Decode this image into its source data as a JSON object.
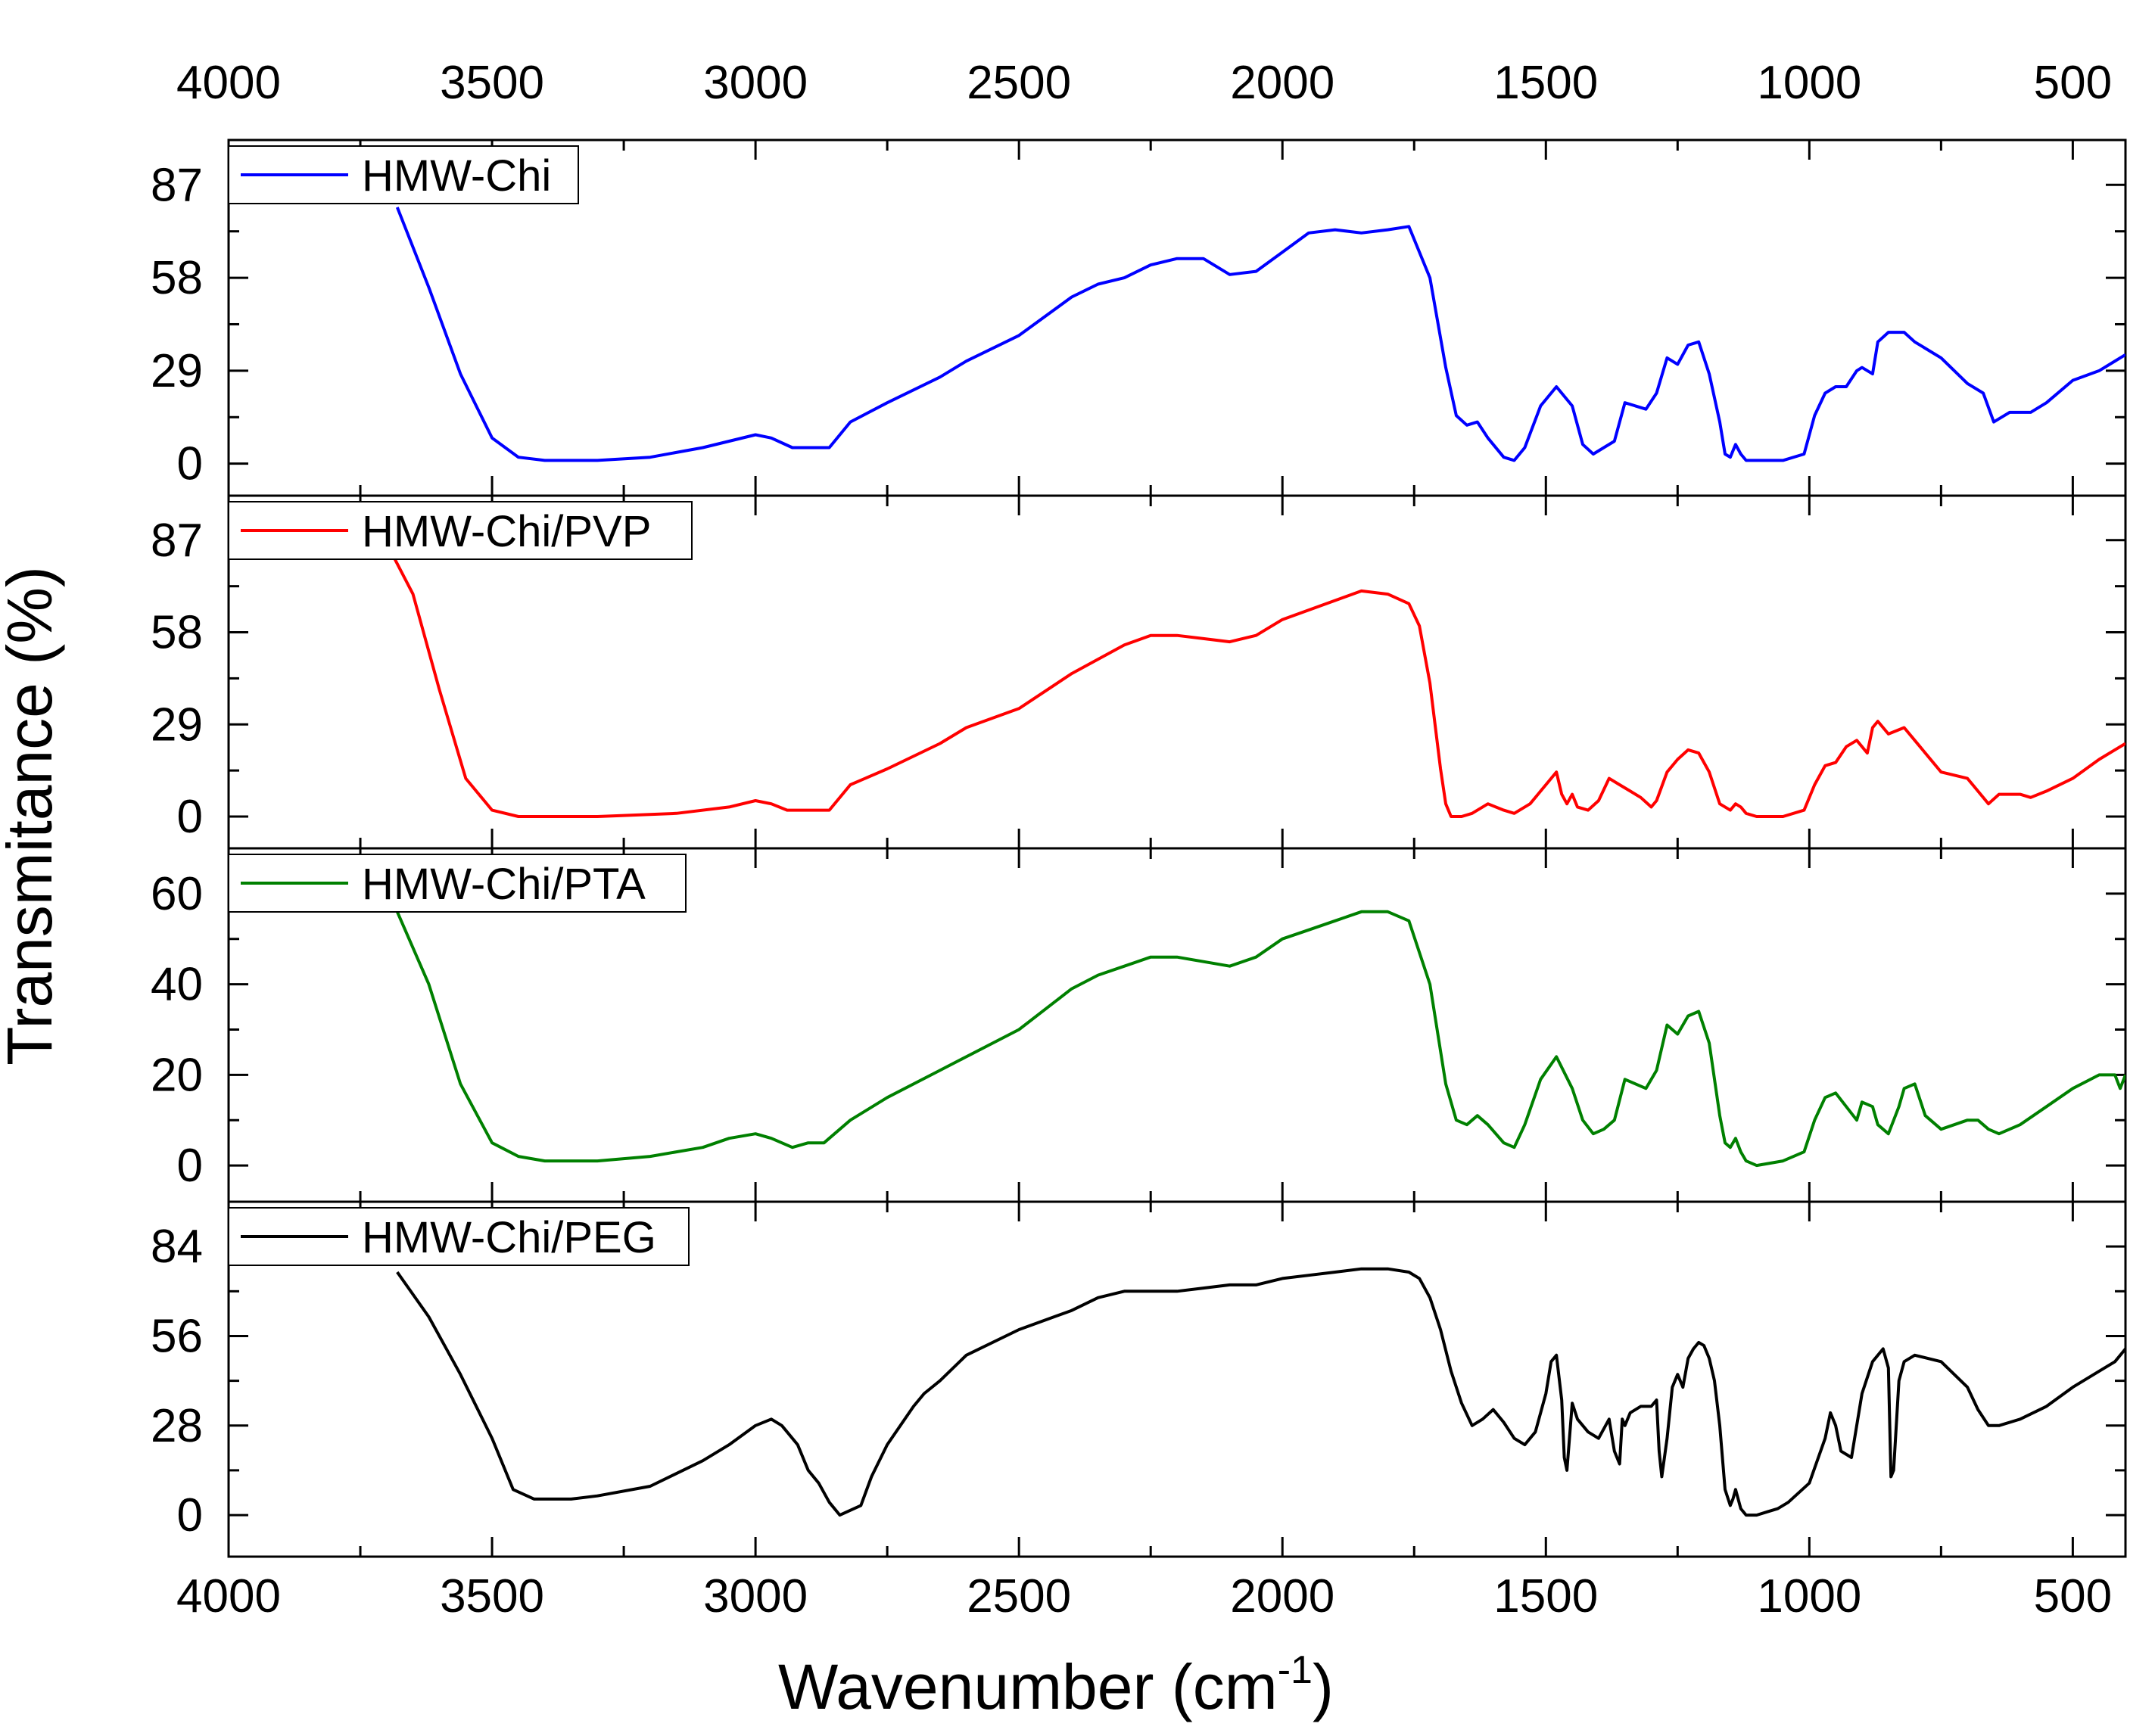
{
  "chart_data": {
    "type": "line",
    "xlabel": "Wavenumber (cm",
    "xlabel_sup": "-1",
    "xlabel_close": ")",
    "ylabel": "Transmitance (%)",
    "xlim": [
      4000,
      400
    ],
    "x_ticks": [
      {
        "v": 4000,
        "label": "4000"
      },
      {
        "v": 3500,
        "label": "3500"
      },
      {
        "v": 3000,
        "label": "3000"
      },
      {
        "v": 2500,
        "label": "2500"
      },
      {
        "v": 2000,
        "label": "2000"
      },
      {
        "v": 1500,
        "label": "1500"
      },
      {
        "v": 1000,
        "label": "1000"
      },
      {
        "v": 500,
        "label": "500"
      }
    ],
    "x_minor_ticks": [
      3750,
      3250,
      2750,
      2250,
      1750,
      1250,
      750
    ],
    "panels": [
      {
        "name": "HMW-Chi",
        "color": "#0000ff",
        "ylim": [
          -10,
          101
        ],
        "y_ticks": [
          {
            "v": 0,
            "label": "0"
          },
          {
            "v": 29,
            "label": "29"
          },
          {
            "v": 58,
            "label": "58"
          },
          {
            "v": 87,
            "label": "87"
          }
        ],
        "x": [
          3680,
          3620,
          3560,
          3500,
          3450,
          3400,
          3300,
          3200,
          3100,
          3050,
          3000,
          2970,
          2930,
          2900,
          2860,
          2820,
          2750,
          2650,
          2600,
          2500,
          2400,
          2350,
          2300,
          2250,
          2200,
          2150,
          2100,
          2050,
          2000,
          1950,
          1900,
          1850,
          1800,
          1760,
          1720,
          1690,
          1670,
          1650,
          1630,
          1610,
          1580,
          1560,
          1540,
          1510,
          1480,
          1450,
          1430,
          1410,
          1390,
          1370,
          1350,
          1330,
          1310,
          1290,
          1270,
          1250,
          1230,
          1210,
          1190,
          1170,
          1160,
          1150,
          1140,
          1130,
          1120,
          1100,
          1050,
          1010,
          990,
          970,
          950,
          930,
          910,
          900,
          880,
          870,
          850,
          820,
          800,
          750,
          700,
          670,
          650,
          620,
          580,
          550,
          500,
          450,
          400
        ],
        "y": [
          80,
          55,
          28,
          8,
          2,
          1,
          1,
          2,
          5,
          7,
          9,
          8,
          5,
          5,
          5,
          13,
          19,
          27,
          32,
          40,
          52,
          56,
          58,
          62,
          64,
          64,
          59,
          60,
          66,
          72,
          73,
          72,
          73,
          74,
          58,
          30,
          15,
          12,
          13,
          8,
          2,
          1,
          5,
          18,
          24,
          18,
          6,
          3,
          5,
          7,
          19,
          18,
          17,
          22,
          33,
          31,
          37,
          38,
          28,
          13,
          3,
          2,
          6,
          3,
          1,
          1,
          1,
          3,
          15,
          22,
          24,
          24,
          29,
          30,
          28,
          38,
          41,
          41,
          38,
          33,
          25,
          22,
          13,
          16,
          16,
          19,
          26,
          29,
          34
        ]
      },
      {
        "name": "HMW-Chi/PVP",
        "color": "#ff0000",
        "ylim": [
          -10,
          101
        ],
        "y_ticks": [
          {
            "v": 0,
            "label": "0"
          },
          {
            "v": 29,
            "label": "29"
          },
          {
            "v": 58,
            "label": "58"
          },
          {
            "v": 87,
            "label": "87"
          }
        ],
        "x": [
          3700,
          3650,
          3600,
          3550,
          3500,
          3450,
          3300,
          3150,
          3050,
          3000,
          2970,
          2940,
          2900,
          2860,
          2820,
          2750,
          2650,
          2600,
          2500,
          2400,
          2300,
          2250,
          2200,
          2150,
          2100,
          2050,
          2000,
          1950,
          1900,
          1850,
          1800,
          1760,
          1740,
          1720,
          1700,
          1690,
          1680,
          1660,
          1640,
          1610,
          1580,
          1560,
          1530,
          1500,
          1480,
          1470,
          1460,
          1450,
          1440,
          1420,
          1400,
          1380,
          1360,
          1340,
          1320,
          1300,
          1290,
          1270,
          1250,
          1230,
          1210,
          1190,
          1170,
          1150,
          1140,
          1130,
          1120,
          1100,
          1050,
          1010,
          990,
          970,
          950,
          930,
          910,
          890,
          880,
          870,
          850,
          820,
          800,
          750,
          700,
          680,
          660,
          640,
          600,
          580,
          550,
          500,
          450,
          400
        ],
        "y": [
          86,
          70,
          40,
          12,
          2,
          0,
          0,
          1,
          3,
          5,
          4,
          2,
          2,
          2,
          10,
          15,
          23,
          28,
          34,
          45,
          54,
          57,
          57,
          56,
          55,
          57,
          62,
          65,
          68,
          71,
          70,
          67,
          60,
          42,
          15,
          4,
          0,
          0,
          1,
          4,
          2,
          1,
          4,
          10,
          14,
          7,
          4,
          7,
          3,
          2,
          5,
          12,
          10,
          8,
          6,
          3,
          5,
          14,
          18,
          21,
          20,
          14,
          4,
          2,
          4,
          3,
          1,
          0,
          0,
          2,
          10,
          16,
          17,
          22,
          24,
          20,
          28,
          30,
          26,
          28,
          24,
          14,
          12,
          8,
          4,
          7,
          7,
          6,
          8,
          12,
          18,
          23
        ]
      },
      {
        "name": "HMW-Chi/PTA",
        "color": "#008000",
        "ylim": [
          -8,
          70
        ],
        "y_ticks": [
          {
            "v": 0,
            "label": "0"
          },
          {
            "v": 20,
            "label": "20"
          },
          {
            "v": 40,
            "label": "40"
          },
          {
            "v": 60,
            "label": "60"
          }
        ],
        "x": [
          3680,
          3620,
          3560,
          3500,
          3450,
          3400,
          3300,
          3200,
          3100,
          3050,
          3000,
          2970,
          2930,
          2900,
          2870,
          2820,
          2750,
          2650,
          2600,
          2500,
          2400,
          2350,
          2300,
          2250,
          2200,
          2150,
          2100,
          2050,
          2000,
          1950,
          1900,
          1850,
          1800,
          1760,
          1720,
          1690,
          1670,
          1650,
          1630,
          1610,
          1580,
          1560,
          1540,
          1510,
          1480,
          1450,
          1430,
          1410,
          1390,
          1370,
          1350,
          1330,
          1310,
          1290,
          1270,
          1250,
          1230,
          1210,
          1190,
          1170,
          1160,
          1150,
          1140,
          1130,
          1120,
          1100,
          1050,
          1010,
          990,
          970,
          950,
          930,
          910,
          900,
          880,
          870,
          850,
          830,
          820,
          800,
          780,
          750,
          700,
          680,
          660,
          640,
          600,
          550,
          500,
          450,
          420,
          410,
          400
        ],
        "y": [
          56,
          40,
          18,
          5,
          2,
          1,
          1,
          2,
          4,
          6,
          7,
          6,
          4,
          5,
          5,
          10,
          15,
          21,
          24,
          30,
          39,
          42,
          44,
          46,
          46,
          45,
          44,
          46,
          50,
          52,
          54,
          56,
          56,
          54,
          40,
          18,
          10,
          9,
          11,
          9,
          5,
          4,
          9,
          19,
          24,
          17,
          10,
          7,
          8,
          10,
          19,
          18,
          17,
          21,
          31,
          29,
          33,
          34,
          27,
          11,
          5,
          4,
          6,
          3,
          1,
          0,
          1,
          3,
          10,
          15,
          16,
          13,
          10,
          14,
          13,
          9,
          7,
          13,
          17,
          18,
          11,
          8,
          10,
          10,
          8,
          7,
          9,
          13,
          17,
          20,
          20,
          17,
          20
        ]
      },
      {
        "name": "HMW-Chi/PEG",
        "color": "#000000",
        "ylim": [
          -13,
          98
        ],
        "y_ticks": [
          {
            "v": 0,
            "label": "0"
          },
          {
            "v": 28,
            "label": "28"
          },
          {
            "v": 56,
            "label": "56"
          },
          {
            "v": 84,
            "label": "84"
          }
        ],
        "x": [
          3680,
          3620,
          3560,
          3500,
          3460,
          3420,
          3380,
          3350,
          3300,
          3200,
          3100,
          3050,
          3000,
          2970,
          2950,
          2920,
          2900,
          2880,
          2860,
          2840,
          2800,
          2780,
          2750,
          2700,
          2680,
          2650,
          2600,
          2500,
          2400,
          2350,
          2300,
          2250,
          2200,
          2150,
          2100,
          2050,
          2000,
          1950,
          1900,
          1850,
          1800,
          1760,
          1740,
          1720,
          1700,
          1680,
          1660,
          1640,
          1620,
          1600,
          1580,
          1560,
          1540,
          1520,
          1500,
          1490,
          1480,
          1470,
          1465,
          1460,
          1450,
          1440,
          1420,
          1400,
          1380,
          1370,
          1360,
          1355,
          1350,
          1340,
          1320,
          1300,
          1290,
          1285,
          1280,
          1270,
          1260,
          1250,
          1240,
          1230,
          1220,
          1210,
          1200,
          1190,
          1180,
          1170,
          1160,
          1150,
          1145,
          1140,
          1130,
          1120,
          1110,
          1100,
          1080,
          1060,
          1040,
          1000,
          970,
          960,
          950,
          940,
          920,
          900,
          880,
          860,
          850,
          845,
          840,
          830,
          820,
          800,
          750,
          700,
          680,
          660,
          640,
          600,
          550,
          500,
          450,
          420,
          400
        ],
        "y": [
          76,
          62,
          44,
          24,
          8,
          5,
          5,
          5,
          6,
          9,
          17,
          22,
          28,
          30,
          28,
          22,
          14,
          10,
          4,
          0,
          3,
          12,
          22,
          34,
          38,
          42,
          50,
          58,
          64,
          68,
          70,
          70,
          70,
          71,
          72,
          72,
          74,
          75,
          76,
          77,
          77,
          76,
          74,
          68,
          58,
          45,
          35,
          28,
          30,
          33,
          29,
          24,
          22,
          26,
          38,
          48,
          50,
          36,
          18,
          14,
          35,
          30,
          26,
          24,
          30,
          20,
          16,
          30,
          28,
          32,
          34,
          34,
          36,
          20,
          12,
          24,
          40,
          44,
          40,
          49,
          52,
          54,
          53,
          49,
          42,
          28,
          8,
          3,
          5,
          8,
          2,
          0,
          0,
          0,
          1,
          2,
          4,
          10,
          24,
          32,
          28,
          20,
          18,
          38,
          48,
          52,
          46,
          12,
          14,
          42,
          48,
          50,
          48,
          40,
          33,
          28,
          28,
          30,
          34,
          40,
          45,
          48,
          52
        ]
      }
    ]
  }
}
